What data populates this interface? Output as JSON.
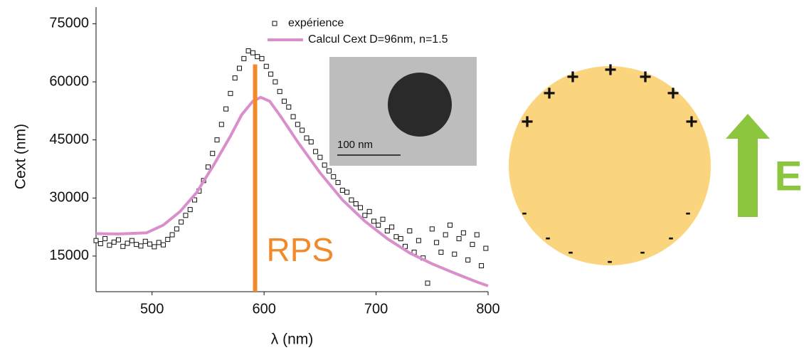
{
  "chart_data": {
    "type": "scatter",
    "x_label": "λ (nm)",
    "y_label": "Cext (nm)",
    "xlim": [
      450,
      800
    ],
    "xticks": [
      500,
      600,
      700,
      800
    ],
    "ylim": [
      5800,
      79300
    ],
    "yticks": [
      15000,
      30000,
      45000,
      60000,
      75000
    ],
    "series": [
      {
        "name": "expérience",
        "color": "#111111",
        "marker": "square",
        "x": [
          450,
          454,
          458,
          462,
          466,
          470,
          474,
          478,
          482,
          486,
          490,
          494,
          498,
          502,
          506,
          510,
          514,
          518,
          522,
          526,
          530,
          534,
          538,
          542,
          546,
          550,
          554,
          558,
          562,
          566,
          570,
          574,
          578,
          582,
          586,
          590,
          594,
          598,
          602,
          606,
          610,
          614,
          618,
          622,
          626,
          630,
          634,
          638,
          642,
          646,
          650,
          654,
          658,
          662,
          666,
          670,
          674,
          678,
          682,
          686,
          690,
          694,
          698,
          702,
          706,
          710,
          714,
          718,
          722,
          726,
          730,
          734,
          738,
          742,
          746,
          750,
          754,
          758,
          762,
          766,
          770,
          774,
          778,
          782,
          786,
          790,
          794,
          798
        ],
        "values": [
          19000,
          18200,
          19500,
          17800,
          18600,
          19200,
          17500,
          18300,
          19000,
          18000,
          17600,
          18800,
          18100,
          17400,
          18500,
          17900,
          19300,
          20500,
          22000,
          23800,
          25500,
          27000,
          29500,
          31800,
          34500,
          38000,
          41500,
          45000,
          49000,
          53000,
          57000,
          61000,
          63500,
          66000,
          68000,
          67500,
          66500,
          66000,
          64000,
          62000,
          60000,
          57500,
          55000,
          53500,
          51000,
          49000,
          47500,
          45500,
          44500,
          42000,
          40500,
          38500,
          37000,
          35500,
          34000,
          32000,
          31500,
          29500,
          28500,
          27500,
          25500,
          26500,
          24000,
          23000,
          24500,
          21500,
          22500,
          20000,
          19500,
          17500,
          21500,
          16000,
          19000,
          14500,
          8000,
          22000,
          18500,
          16000,
          20500,
          23000,
          15500,
          19500,
          21000,
          14000,
          18000,
          20500,
          12500,
          17000
        ]
      },
      {
        "name": "Calcul Cext D=96nm, n=1.5",
        "color": "#d98fcb",
        "marker": "line",
        "x": [
          450,
          470,
          495,
          510,
          525,
          540,
          555,
          570,
          580,
          590,
          597,
          605,
          615,
          630,
          650,
          670,
          690,
          710,
          730,
          750,
          770,
          790,
          800
        ],
        "values": [
          20800,
          20700,
          21000,
          23000,
          26500,
          31500,
          38500,
          46000,
          51500,
          55000,
          56000,
          55000,
          51000,
          44500,
          36500,
          29500,
          24000,
          19500,
          15800,
          13000,
          10600,
          8300,
          7300
        ]
      }
    ],
    "vline": {
      "x": 592,
      "ymax": 64500,
      "label": "RPS",
      "color": "#f08a2a"
    },
    "inset": {
      "scale_bar": "100 nm"
    }
  },
  "diagram": {
    "positive_charge": "+",
    "negative_charge": "-",
    "field_label": "E"
  }
}
